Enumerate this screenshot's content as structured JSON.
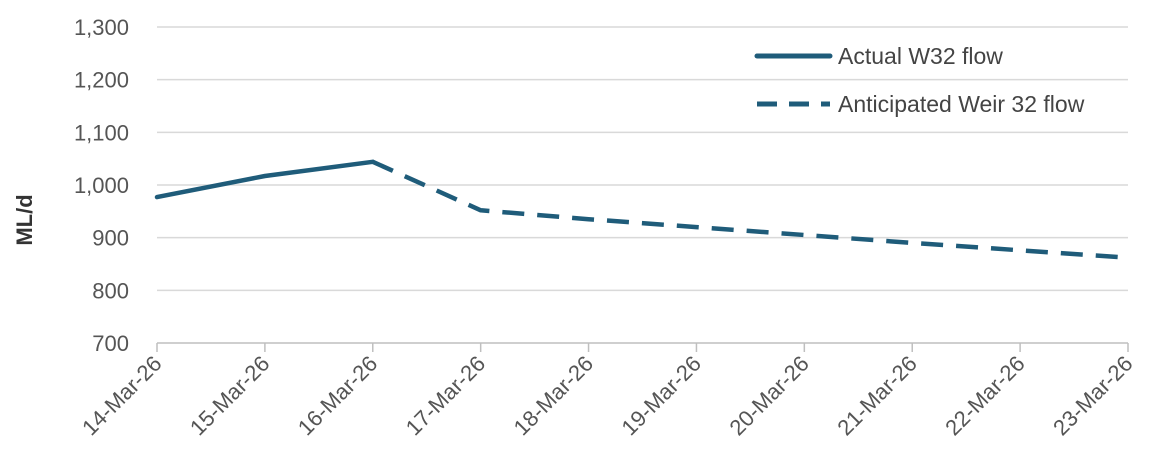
{
  "chart_data": {
    "type": "line",
    "x": [
      "14-Mar-26",
      "15-Mar-26",
      "16-Mar-26",
      "17-Mar-26",
      "18-Mar-26",
      "19-Mar-26",
      "20-Mar-26",
      "21-Mar-26",
      "22-Mar-26",
      "23-Mar-26"
    ],
    "series": [
      {
        "name": "Actual W32 flow",
        "style": "solid",
        "color": "#1F5C7A",
        "values": [
          977,
          1017,
          1044,
          null,
          null,
          null,
          null,
          null,
          null,
          null
        ]
      },
      {
        "name": "Anticipated Weir 32 flow",
        "style": "dashed",
        "color": "#1F5C7A",
        "values": [
          null,
          null,
          1044,
          952,
          935,
          920,
          905,
          890,
          876,
          862
        ]
      }
    ],
    "title": "",
    "xlabel": "",
    "ylabel": "ML/d",
    "ylim": [
      700,
      1300
    ],
    "yticks": [
      700,
      800,
      900,
      1000,
      1100,
      1200,
      1300
    ],
    "ytick_labels": [
      "700",
      "800",
      "900",
      "1,000",
      "1,100",
      "1,200",
      "1,300"
    ],
    "grid": "horizontal",
    "legend_position": "top-right",
    "colors": {
      "series": "#1F5C7A",
      "grid": "#d9d9d9",
      "axis": "#bfbfbf",
      "text": "#555555"
    }
  }
}
